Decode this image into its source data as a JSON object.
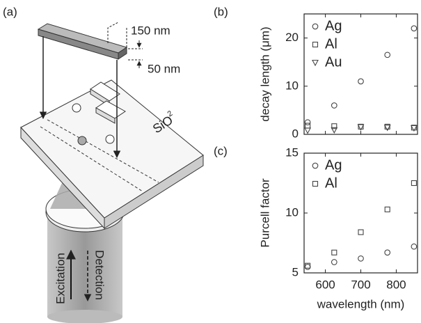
{
  "diagram": {
    "panel_label": "(a)",
    "width_label": "150 nm",
    "height_label": "50 nm",
    "substrate_label": "SiO",
    "substrate_subscript": "2",
    "excitation_label": "Excitation",
    "detection_label": "Detection"
  },
  "chart_data": [
    {
      "type": "scatter",
      "panel_label": "(b)",
      "ylabel": "decay length (μm)",
      "x": [
        550,
        625,
        700,
        775,
        850
      ],
      "xlim": [
        540,
        860
      ],
      "xticks": [
        600,
        700,
        800
      ],
      "xtick_labels_shown": false,
      "ylim": [
        0,
        25
      ],
      "yticks": [
        0,
        10,
        20
      ],
      "series": [
        {
          "name": "Ag",
          "color": "#444444",
          "marker": "circle",
          "values": [
            2.5,
            6,
            11,
            16.5,
            22
          ]
        },
        {
          "name": "Al",
          "color": "#444444",
          "marker": "square",
          "values": [
            1.8,
            1.7,
            1.6,
            1.6,
            1.4
          ]
        },
        {
          "name": "Au",
          "color": "#444444",
          "marker": "triangle-down",
          "values": [
            0.8,
            0.9,
            1.5,
            1.4,
            1.3
          ]
        }
      ]
    },
    {
      "type": "scatter",
      "panel_label": "(c)",
      "ylabel": "Purcell factor",
      "xlabel": "wavelength (nm)",
      "x": [
        550,
        625,
        700,
        775,
        850
      ],
      "xlim": [
        540,
        860
      ],
      "xticks": [
        600,
        700,
        800
      ],
      "xtick_labels_shown": true,
      "ylim": [
        5,
        15
      ],
      "yticks": [
        5,
        10,
        15
      ],
      "series": [
        {
          "name": "Ag",
          "color": "#444444",
          "marker": "circle",
          "values": [
            5.5,
            5.9,
            6.2,
            6.7,
            7.2
          ]
        },
        {
          "name": "Al",
          "color": "#444444",
          "marker": "square",
          "values": [
            5.6,
            6.7,
            8.4,
            10.3,
            12.5
          ]
        }
      ]
    }
  ]
}
